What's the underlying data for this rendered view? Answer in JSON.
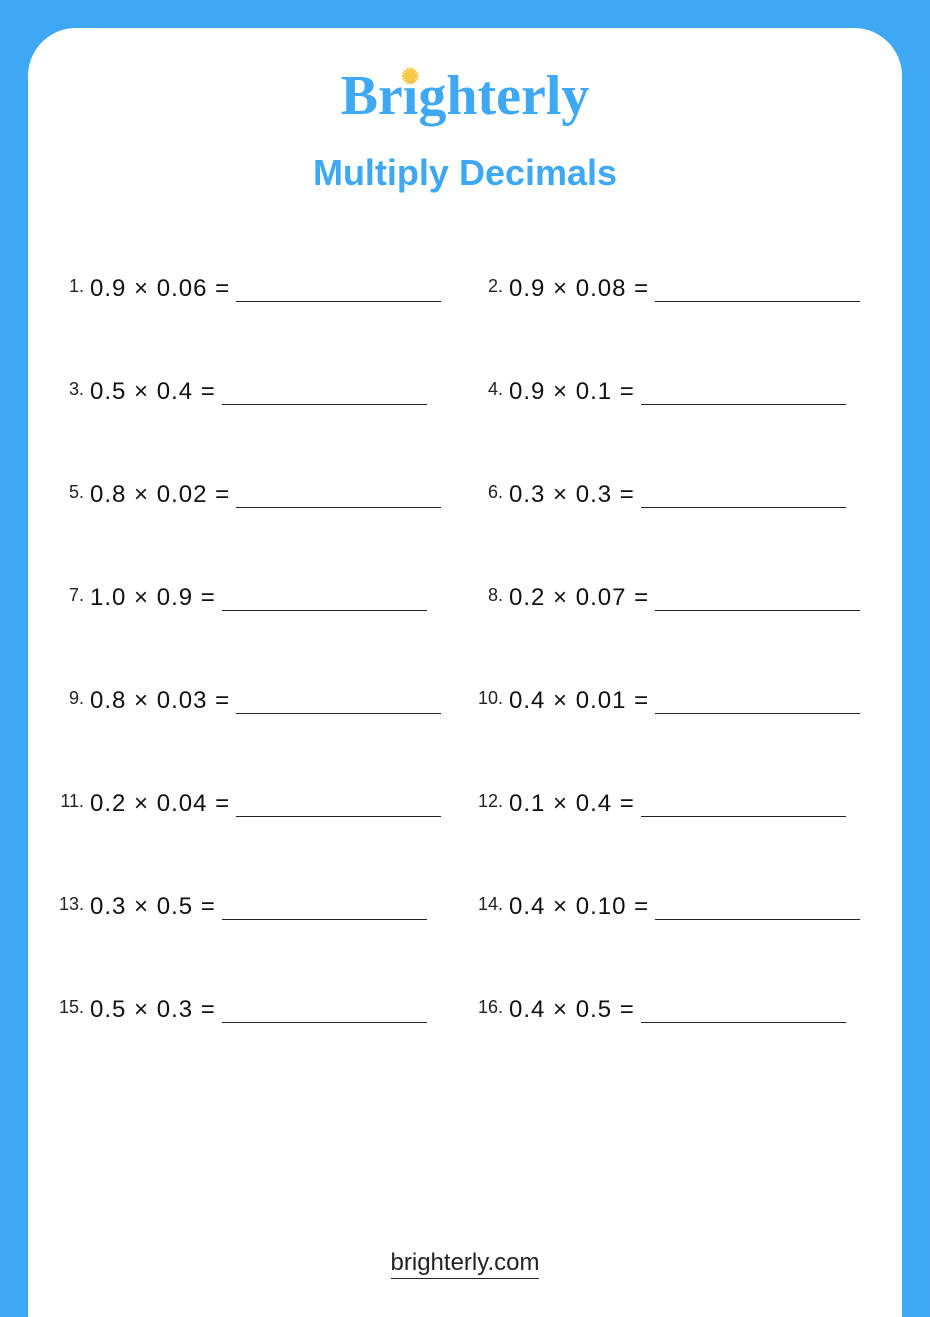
{
  "brand": "Brighterly",
  "title": "Multiply Decimals",
  "footer": "brighterly.com",
  "colors": {
    "background": "#3ea8f4",
    "page": "#ffffff",
    "accent": "#3ea8f4",
    "sun": "#f9c846",
    "text": "#111111"
  },
  "problems": [
    {
      "n": "1.",
      "eq": "0.9 × 0.06 ="
    },
    {
      "n": "2.",
      "eq": "0.9 × 0.08 ="
    },
    {
      "n": "3.",
      "eq": "0.5 × 0.4 ="
    },
    {
      "n": "4.",
      "eq": "0.9 × 0.1 ="
    },
    {
      "n": "5.",
      "eq": "0.8 × 0.02 ="
    },
    {
      "n": "6.",
      "eq": "0.3 × 0.3 ="
    },
    {
      "n": "7.",
      "eq": "1.0 × 0.9 ="
    },
    {
      "n": "8.",
      "eq": "0.2 × 0.07 ="
    },
    {
      "n": "9.",
      "eq": "0.8 × 0.03 ="
    },
    {
      "n": "10.",
      "eq": "0.4 × 0.01 ="
    },
    {
      "n": "11.",
      "eq": "0.2 × 0.04 ="
    },
    {
      "n": "12.",
      "eq": "0.1 × 0.4 ="
    },
    {
      "n": "13.",
      "eq": "0.3 × 0.5 ="
    },
    {
      "n": "14.",
      "eq": "0.4 × 0.10 ="
    },
    {
      "n": "15.",
      "eq": "0.5 × 0.3 ="
    },
    {
      "n": "16.",
      "eq": "0.4 × 0.5 ="
    }
  ]
}
